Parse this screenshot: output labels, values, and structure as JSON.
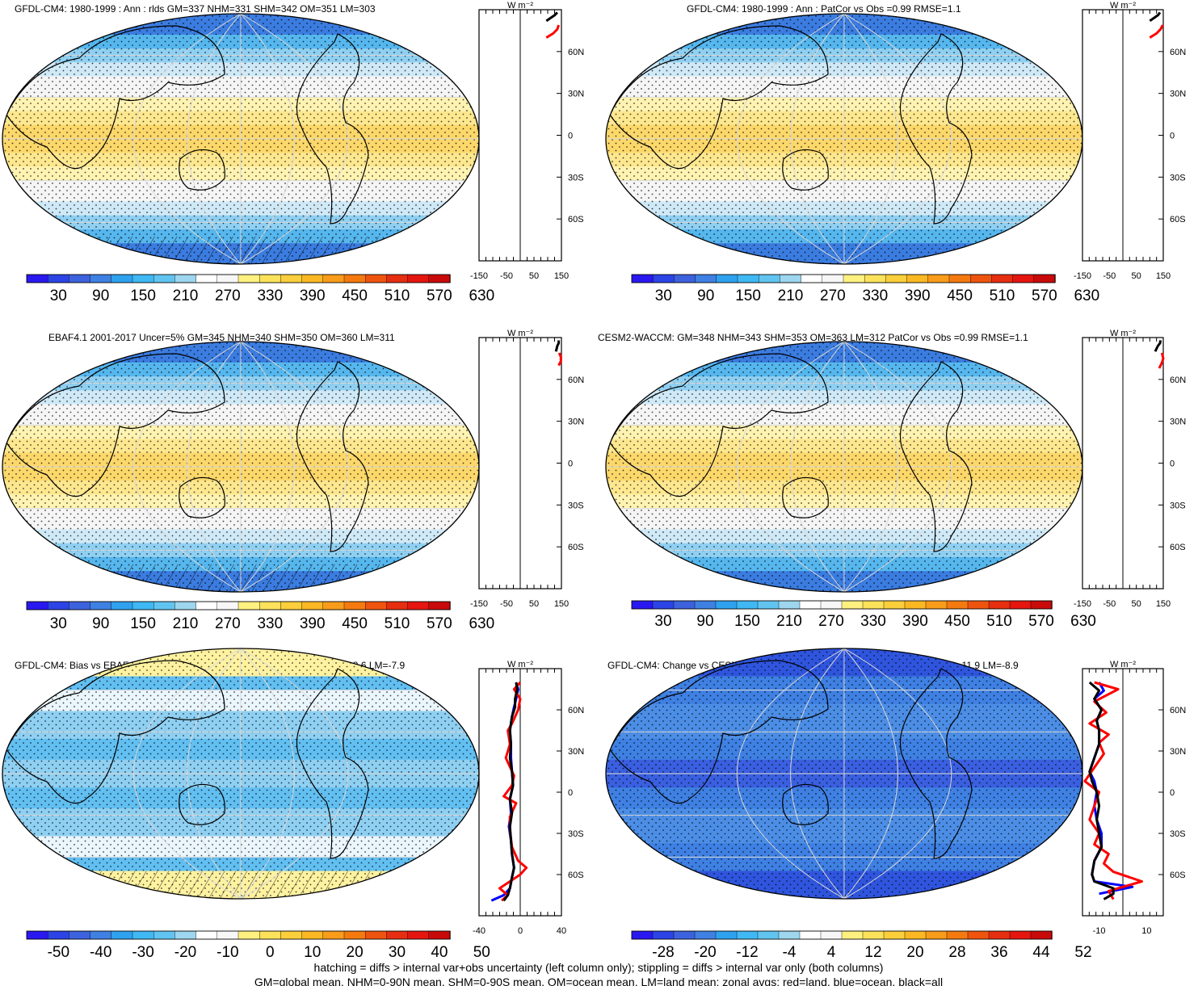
{
  "chart_data": [
    {
      "type": "heatmap",
      "title": "GFDL-CM4: 1980-1999 : Ann : rlds GM=337 NHM=331 SHM=342 OM=351 LM=303",
      "colorbar_labels": [
        "30",
        "90",
        "150",
        "210",
        "270",
        "330",
        "390",
        "450",
        "510",
        "570",
        "630"
      ],
      "colorbar_range": [
        0,
        660
      ],
      "zonal_profile": {
        "xlabel": "W m⁻²",
        "xticks": [
          "-150",
          "-50",
          "50",
          "150"
        ],
        "xlim": [
          -150,
          150
        ],
        "ytick_labels": [
          "60N",
          "30N",
          "0",
          "30S",
          "60S"
        ],
        "ylim": [
          -90,
          90
        ],
        "series": [
          {
            "color": "#ff0000",
            "x": [
              95,
              120,
              135,
              140
            ],
            "y": [
              70,
              73,
              76,
              79
            ]
          },
          {
            "color": "#000000",
            "x": [
              95,
              110,
              125,
              135
            ],
            "y": [
              82,
              84,
              86,
              88
            ]
          }
        ]
      }
    },
    {
      "type": "heatmap",
      "title": "GFDL-CM4: 1980-1999 : Ann : PatCor vs Obs =0.99 RMSE=1.1",
      "colorbar_labels": [
        "30",
        "90",
        "150",
        "210",
        "270",
        "330",
        "390",
        "450",
        "510",
        "570",
        "630"
      ],
      "colorbar_range": [
        0,
        660
      ],
      "zonal_profile": {
        "xlabel": "W m⁻²",
        "xticks": [
          "-150",
          "-50",
          "50",
          "150"
        ],
        "xlim": [
          -150,
          150
        ],
        "ytick_labels": [
          "60N",
          "30N",
          "0",
          "30S",
          "60S"
        ],
        "ylim": [
          -90,
          90
        ],
        "series": [
          {
            "color": "#ff0000",
            "x": [
              100,
              125,
              140,
              148
            ],
            "y": [
              70,
              73,
              76,
              79
            ]
          },
          {
            "color": "#000000",
            "x": [
              100,
              115,
              130,
              138
            ],
            "y": [
              82,
              84,
              86,
              88
            ]
          }
        ]
      }
    },
    {
      "type": "heatmap",
      "title": "EBAF4.1 2001-2017 Uncer=5% GM=345 NHM=340 SHM=350 OM=360 LM=311",
      "colorbar_labels": [
        "30",
        "90",
        "150",
        "210",
        "270",
        "330",
        "390",
        "450",
        "510",
        "570",
        "630"
      ],
      "colorbar_range": [
        0,
        660
      ],
      "zonal_profile": {
        "xlabel": "W m⁻²",
        "xticks": [
          "-150",
          "-50",
          "50",
          "150"
        ],
        "xlim": [
          -150,
          150
        ],
        "ytick_labels": [
          "60N",
          "30N",
          "0",
          "30S",
          "60S"
        ],
        "ylim": [
          -90,
          90
        ],
        "series": [
          {
            "color": "#ff0000",
            "x": [
              140,
              148,
              148,
              142
            ],
            "y": [
              70,
              73,
              76,
              79
            ]
          },
          {
            "color": "#000000",
            "x": [
              130,
              135,
              140,
              140
            ],
            "y": [
              80,
              84,
              86,
              88
            ]
          }
        ]
      }
    },
    {
      "type": "heatmap",
      "title": "CESM2-WACCM: GM=348 NHM=343 SHM=353 OM=363 LM=312 PatCor vs Obs =0.99 RMSE=1.1",
      "colorbar_labels": [
        "30",
        "90",
        "150",
        "210",
        "270",
        "330",
        "390",
        "450",
        "510",
        "570",
        "630"
      ],
      "colorbar_range": [
        0,
        660
      ],
      "zonal_profile": {
        "xlabel": "W m⁻²",
        "xticks": [
          "-150",
          "-50",
          "50",
          "150"
        ],
        "xlim": [
          -150,
          150
        ],
        "ytick_labels": [
          "60N",
          "30N",
          "0",
          "30S",
          "60S"
        ],
        "ylim": [
          -90,
          90
        ],
        "series": [
          {
            "color": "#ff0000",
            "x": [
              135,
              145,
              150,
              145
            ],
            "y": [
              68,
              72,
              75,
              79
            ]
          },
          {
            "color": "#000000",
            "x": [
              120,
              130,
              138,
              140
            ],
            "y": [
              80,
              84,
              86,
              88
            ]
          }
        ]
      }
    },
    {
      "type": "heatmap",
      "title": "GFDL-CM4: Bias vs EBAF4.1 2001-2017 GM=-8.4 NHM=-8.4 SHM=-8.3 OM=-8.6 LM=-7.9",
      "colorbar_labels": [
        "-50",
        "-40",
        "-30",
        "-20",
        "-10",
        "0",
        "10",
        "20",
        "30",
        "40",
        "50"
      ],
      "colorbar_range": [
        -55,
        55
      ],
      "zonal_profile": {
        "xlabel": "W m⁻²",
        "xticks": [
          "-40",
          "0",
          "40"
        ],
        "xlim": [
          -40,
          40
        ],
        "ytick_labels": [
          "60N",
          "30N",
          "0",
          "30S",
          "60S"
        ],
        "ylim": [
          -90,
          90
        ],
        "series": [
          {
            "color": "#0000ff",
            "x": [
              -4,
              -2,
              -4,
              -6,
              -8,
              -10,
              -9,
              -9,
              -8,
              -7,
              -10,
              -9,
              -11,
              -9,
              -8,
              -6,
              -8,
              -10,
              -16,
              -28
            ],
            "y": [
              80,
              75,
              68,
              62,
              55,
              45,
              35,
              25,
              15,
              5,
              -5,
              -15,
              -25,
              -35,
              -45,
              -55,
              -62,
              -70,
              -75,
              -79
            ]
          },
          {
            "color": "#ff0000",
            "x": [
              0,
              -6,
              0,
              -2,
              -8,
              -12,
              -10,
              -14,
              -6,
              -8,
              -16,
              -4,
              -10,
              -10,
              -8,
              -2,
              6,
              0,
              -20,
              -12,
              -18
            ],
            "y": [
              80,
              75,
              68,
              60,
              50,
              45,
              35,
              25,
              12,
              5,
              -3,
              -8,
              -18,
              -28,
              -40,
              -50,
              -55,
              -60,
              -70,
              -75,
              -79
            ]
          },
          {
            "color": "#000000",
            "x": [
              -4,
              -3,
              -5,
              -5,
              -8,
              -10,
              -9,
              -10,
              -8,
              -7,
              -10,
              -8,
              -10,
              -9,
              -8,
              -6,
              -8,
              -10,
              -12,
              -16
            ],
            "y": [
              80,
              75,
              68,
              62,
              55,
              45,
              35,
              25,
              15,
              5,
              -5,
              -15,
              -25,
              -35,
              -45,
              -55,
              -62,
              -70,
              -75,
              -79
            ]
          }
        ]
      }
    },
    {
      "type": "heatmap",
      "title": "GFDL-CM4: Change vs CESM2-WACCM GM=-11.0 NHM=-11.3 SHM=-10.8 OM=-11.9 LM=-8.9",
      "colorbar_labels": [
        "-28",
        "-20",
        "-12",
        "-4",
        "4",
        "12",
        "20",
        "28",
        "36",
        "44",
        "52"
      ],
      "colorbar_range": [
        -32,
        56
      ],
      "zonal_profile": {
        "xlabel": "W m⁻²",
        "xticks": [
          "-10",
          "10"
        ],
        "xlim": [
          -17,
          17
        ],
        "ytick_labels": [
          "60N",
          "30N",
          "0",
          "30S",
          "60S"
        ],
        "ylim": [
          -90,
          90
        ],
        "series": [
          {
            "color": "#0000ff",
            "x": [
              -10,
              -8,
              -12,
              -9,
              -11,
              -10,
              -10,
              -12,
              -14,
              -12,
              -11,
              -12,
              -11,
              -9,
              -9,
              -12,
              -13,
              -12,
              4,
              -10
            ],
            "y": [
              80,
              74,
              68,
              60,
              52,
              45,
              35,
              25,
              15,
              8,
              0,
              -10,
              -20,
              -30,
              -40,
              -50,
              -60,
              -65,
              -69,
              -74
            ]
          },
          {
            "color": "#ff0000",
            "x": [
              -12,
              -2,
              -12,
              -7,
              -14,
              -6,
              -10,
              -8,
              -12,
              -16,
              -10,
              -12,
              -14,
              -10,
              -12,
              -6,
              -8,
              -4,
              8,
              -6,
              -4
            ],
            "y": [
              80,
              75,
              66,
              58,
              50,
              42,
              36,
              28,
              18,
              8,
              0,
              -10,
              -20,
              -30,
              -38,
              -45,
              -52,
              -58,
              -65,
              -72,
              -78
            ]
          },
          {
            "color": "#000000",
            "x": [
              -14,
              -10,
              -12,
              -9,
              -11,
              -10,
              -10,
              -12,
              -14,
              -13,
              -11,
              -10,
              -11,
              -10,
              -9,
              -12,
              -13,
              -12,
              -4,
              -4,
              -8
            ],
            "y": [
              80,
              74,
              68,
              60,
              52,
              45,
              35,
              25,
              15,
              8,
              0,
              -10,
              -20,
              -30,
              -40,
              -50,
              -60,
              -65,
              -70,
              -74,
              -78
            ]
          }
        ]
      }
    }
  ],
  "footer": {
    "line1": "hatching = diffs > internal var+obs uncertainty (left column only); stippling = diffs > internal var only (both columns)",
    "line2": "GM=global mean, NHM=0-90N mean, SHM=0-90S mean, OM=ocean mean, LM=land mean; zonal avgs: red=land, blue=ocean, black=all"
  },
  "palettes": {
    "absolute": [
      "#2a18f0",
      "#2c44e6",
      "#3d62dd",
      "#3f80e3",
      "#2ea2ef",
      "#3fb8f4",
      "#61c4f0",
      "#9dd6ee",
      "#ffffff",
      "#f7f7f7",
      "#fff180",
      "#fce25a",
      "#fbcf3b",
      "#fbb823",
      "#f89c1a",
      "#f47a10",
      "#ef540f",
      "#e62e10",
      "#e4160f",
      "#c90a0a"
    ],
    "bias": [
      "#2a18f0",
      "#2c44e6",
      "#3d62dd",
      "#3f80e3",
      "#2ea2ef",
      "#3fb8f4",
      "#61c4f0",
      "#9dd6ee",
      "#ffffff",
      "#f7f7f7",
      "#fff180",
      "#fce25a",
      "#fbcf3b",
      "#fbb823",
      "#f89c1a",
      "#f47a10",
      "#ef540f",
      "#e62e10",
      "#e4160f",
      "#c90a0a"
    ]
  }
}
